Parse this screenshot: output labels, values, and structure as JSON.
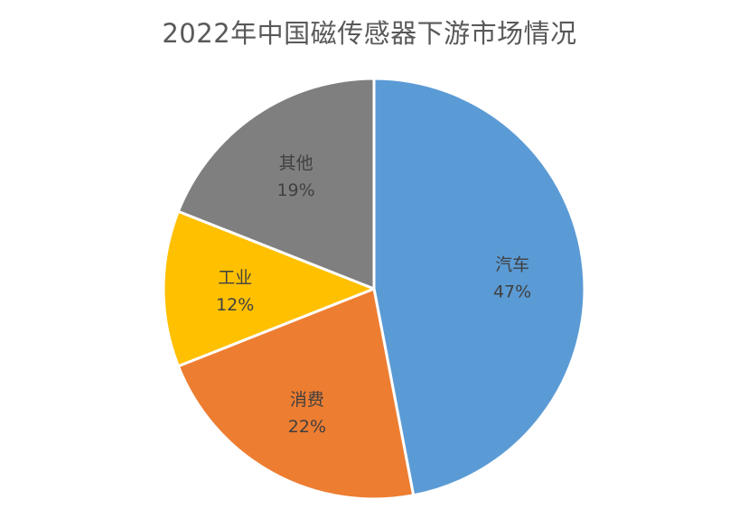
{
  "chart_data": {
    "type": "pie",
    "title": "2022年中国磁传感器下游市场情况",
    "categories": [
      "汽车",
      "消费",
      "工业",
      "其他"
    ],
    "values": [
      47,
      22,
      12,
      19
    ],
    "value_labels": [
      "47%",
      "22%",
      "12%",
      "19%"
    ],
    "colors": [
      "#5B9BD5",
      "#ED7D31",
      "#FFC000",
      "#7F7F7F"
    ],
    "start": "12 o'clock, clockwise",
    "legend": "none",
    "data_labels": "category name and percentage inside slices"
  }
}
